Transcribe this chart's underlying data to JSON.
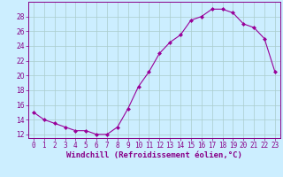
{
  "x": [
    0,
    1,
    2,
    3,
    4,
    5,
    6,
    7,
    8,
    9,
    10,
    11,
    12,
    13,
    14,
    15,
    16,
    17,
    18,
    19,
    20,
    21,
    22,
    23
  ],
  "y": [
    15,
    14,
    13.5,
    13,
    12.5,
    12.5,
    12,
    12,
    13,
    15.5,
    18.5,
    20.5,
    23,
    24.5,
    25.5,
    27.5,
    28,
    29,
    29,
    28.5,
    27,
    26.5,
    25,
    20.5
  ],
  "line_color": "#990099",
  "marker": "D",
  "marker_size": 2.0,
  "bg_color": "#cceeff",
  "grid_color": "#aacccc",
  "xlabel": "Windchill (Refroidissement éolien,°C)",
  "ylabel_ticks": [
    12,
    14,
    16,
    18,
    20,
    22,
    24,
    26,
    28
  ],
  "xtick_labels": [
    "0",
    "1",
    "2",
    "3",
    "4",
    "5",
    "6",
    "7",
    "8",
    "9",
    "10",
    "11",
    "12",
    "13",
    "14",
    "15",
    "16",
    "17",
    "18",
    "19",
    "20",
    "21",
    "22",
    "23"
  ],
  "ylim": [
    11.5,
    30.0
  ],
  "xlim": [
    -0.5,
    23.5
  ],
  "title_color": "#880088",
  "axis_color": "#880088",
  "tick_color": "#880088",
  "tick_fontsize": 5.5,
  "xlabel_fontsize": 6.5,
  "ylabel_fontsize": 5.5
}
